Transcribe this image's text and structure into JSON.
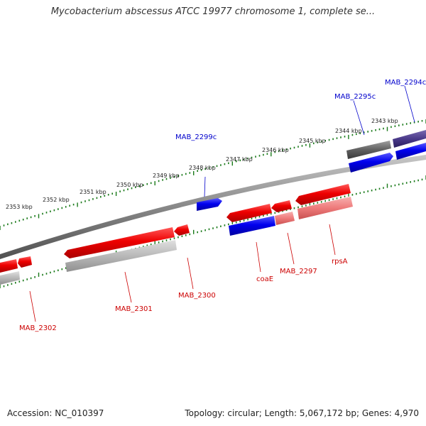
{
  "title": "Mycobacterium abscessus ATCC 19977 chromosome 1, complete se...",
  "footer": {
    "accession": "Accession: NC_010397",
    "stats": "Topology: circular; Length: 5,067,172 bp; Genes: 4,970"
  },
  "ticks": {
    "labels": [
      "2353 kbp",
      "2352 kbp",
      "2351 kbp",
      "2350 kbp",
      "2349 kbp",
      "2348 kbp",
      "2347 kbp",
      "2346 kbp",
      "2345 kbp",
      "2344 kbp",
      "2343 kbp"
    ]
  },
  "genes_top": [
    {
      "label": "MAB_2299c"
    },
    {
      "label": "MAB_2295c"
    },
    {
      "label": "MAB_2294c"
    }
  ],
  "genes_bottom": [
    {
      "label": "MAB_2302"
    },
    {
      "label": "MAB_2301"
    },
    {
      "label": "MAB_2300"
    },
    {
      "label": "coaE"
    },
    {
      "label": "MAB_2297"
    },
    {
      "label": "rpsA"
    }
  ],
  "colors": {
    "forward": "#ee0000",
    "reverse": "#0000ee",
    "forward_shadow_light": "#f08080",
    "forward_shadow_gray": "#b0b0b0",
    "reverse_shadow_dark": "#606060",
    "reverse_shadow_purple": "#4a3a8a",
    "backbone": "#888888",
    "tick": "#1a7a1a",
    "label_forward": "#cc0000",
    "label_reverse": "#0000cc"
  }
}
